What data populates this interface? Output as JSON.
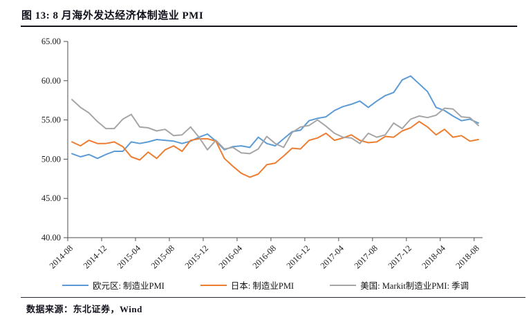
{
  "header": {
    "title": "图 13: 8 月海外发达经济体制造业 PMI"
  },
  "footer": {
    "source": "数据来源：东北证券，Wind"
  },
  "chart_data": {
    "type": "line",
    "title": "8 月海外发达经济体制造业 PMI",
    "xlabel": "",
    "ylabel": "",
    "ylim": [
      40,
      65
    ],
    "y_tick_labels": [
      "65.00",
      "60.00",
      "55.00",
      "50.00",
      "45.00",
      "40.00"
    ],
    "x_tick_labels": [
      "2014-08",
      "2014-12",
      "2015-04",
      "2015-08",
      "2015-12",
      "2016-04",
      "2016-08",
      "2016-12",
      "2017-04",
      "2017-08",
      "2017-12",
      "2018-04",
      "2018-08"
    ],
    "x_frequency": "monthly",
    "x_range": "2014-08 to 2018-08",
    "grid": false,
    "legend_position": "bottom",
    "axis_color": "#4d4d4d",
    "series": [
      {
        "name": "欧元区: 制造业PMI",
        "color": "#5B9BD5",
        "values": [
          50.7,
          50.3,
          50.6,
          50.1,
          50.6,
          51.0,
          51.0,
          52.2,
          52.0,
          52.2,
          52.5,
          52.4,
          52.3,
          52.0,
          52.3,
          52.8,
          53.2,
          52.3,
          51.2,
          51.6,
          51.7,
          51.5,
          52.8,
          52.0,
          51.7,
          52.6,
          53.5,
          53.7,
          54.9,
          55.2,
          55.4,
          56.2,
          56.7,
          57.0,
          57.4,
          56.6,
          57.4,
          58.1,
          58.5,
          60.1,
          60.6,
          59.6,
          58.6,
          56.6,
          56.2,
          55.5,
          54.9,
          55.1,
          54.6
        ]
      },
      {
        "name": "日本: 制造业PMI",
        "color": "#ED7D31",
        "values": [
          52.2,
          51.7,
          52.4,
          52.0,
          52.0,
          52.2,
          51.6,
          50.3,
          49.9,
          50.9,
          50.1,
          51.2,
          51.7,
          51.0,
          52.4,
          52.6,
          52.6,
          52.3,
          50.1,
          49.1,
          48.2,
          47.7,
          48.1,
          49.3,
          49.5,
          50.4,
          51.4,
          51.3,
          52.4,
          52.7,
          53.3,
          52.4,
          52.7,
          53.1,
          52.4,
          52.1,
          52.2,
          52.9,
          52.8,
          53.6,
          54.0,
          54.8,
          54.1,
          53.1,
          53.8,
          52.8,
          53.0,
          52.3,
          52.5
        ]
      },
      {
        "name": "美国: Markit制造业PMI: 季调",
        "color": "#A5A5A5",
        "values": [
          57.6,
          56.6,
          55.9,
          54.8,
          53.9,
          53.9,
          55.1,
          55.7,
          54.1,
          54.0,
          53.6,
          53.8,
          53.0,
          53.1,
          54.1,
          52.8,
          51.2,
          52.4,
          51.3,
          51.5,
          50.8,
          50.7,
          51.3,
          52.9,
          52.0,
          51.5,
          53.4,
          54.1,
          54.3,
          55.0,
          54.2,
          53.3,
          52.8,
          52.7,
          52.0,
          53.3,
          52.8,
          53.1,
          54.6,
          53.9,
          55.1,
          55.5,
          55.3,
          55.6,
          56.5,
          56.4,
          55.4,
          55.3,
          54.3
        ]
      }
    ]
  }
}
